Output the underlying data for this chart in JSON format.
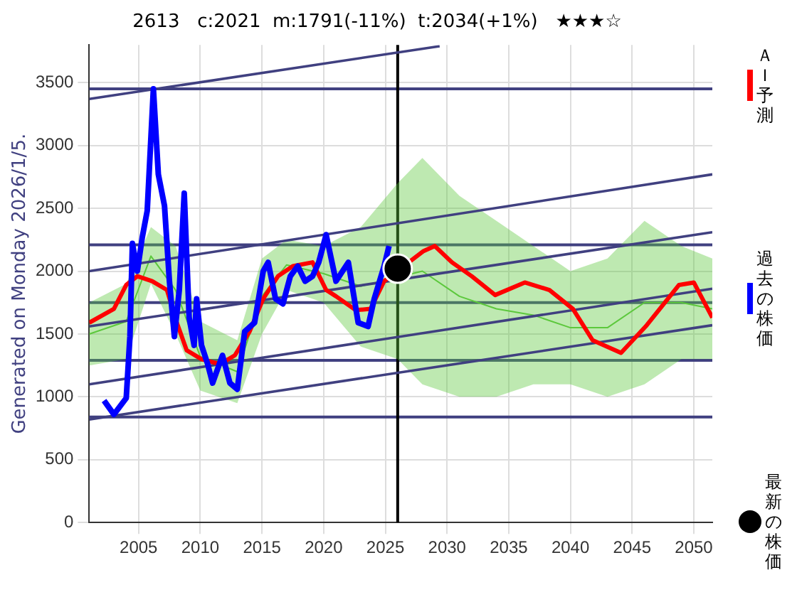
{
  "chart_data": {
    "type": "line",
    "title": "2613   c:2021  m:1791(-11%)  t:2034(+1%)   ★★★☆",
    "annotations": [
      "Generated on Monday 2026/1/5."
    ],
    "xlim": [
      2001,
      2051.5
    ],
    "xticks": [
      2005,
      2010,
      2015,
      2020,
      2025,
      2030,
      2035,
      2040,
      2045,
      2050
    ],
    "ylim": [
      0,
      3800
    ],
    "yticks": [
      0,
      500,
      1000,
      1500,
      2000,
      2500,
      3000,
      3500
    ],
    "grid": true,
    "legend": "right",
    "ref_lines": [
      {
        "axis": "y",
        "value": 3450,
        "color": "#404080"
      },
      {
        "axis": "y",
        "value": 2210,
        "color": "#404080"
      },
      {
        "axis": "y",
        "value": 1750,
        "color": "#404080"
      },
      {
        "axis": "y",
        "value": 1290,
        "color": "#404080"
      },
      {
        "axis": "y",
        "value": 840,
        "color": "#404080"
      },
      {
        "axis": "x",
        "value": 2026,
        "color": "#000000"
      }
    ],
    "series": [
      {
        "color": "#5cc83c",
        "x": [
          2001,
          2004,
          2006,
          2008,
          2010,
          2013,
          2015,
          2017,
          2020,
          2023,
          2026,
          2028,
          2031,
          2034,
          2037,
          2040,
          2043,
          2046,
          2049,
          2051.5
        ],
        "values": [
          1500,
          1600,
          2120,
          1850,
          1320,
          1200,
          1800,
          2050,
          1980,
          1880,
          null,
          2000,
          1800,
          1700,
          1650,
          1550,
          1550,
          1750,
          1750,
          1700
        ],
        "lower": [
          1250,
          1300,
          1900,
          1500,
          1050,
          950,
          1500,
          1850,
          1750,
          1400,
          1300,
          1100,
          1000,
          1000,
          1100,
          1100,
          1000,
          1100,
          1300,
          1300
        ],
        "upper": [
          1750,
          1900,
          2350,
          2200,
          1600,
          1450,
          2100,
          2250,
          2200,
          2350,
          2700,
          2900,
          2600,
          2400,
          2200,
          2000,
          2100,
          2400,
          2200,
          2100
        ]
      },
      {
        "color": "#404080",
        "x": [
          2001,
          2029.4
        ],
        "values": [
          3370,
          3790
        ]
      },
      {
        "color": "#404080",
        "x": [
          2001,
          2051.5
        ],
        "values": [
          2000,
          2770
        ]
      },
      {
        "color": "#404080",
        "x": [
          2001,
          2051.5
        ],
        "values": [
          1560,
          2310
        ]
      },
      {
        "color": "#404080",
        "x": [
          2001,
          2051.5
        ],
        "values": [
          1100,
          1860
        ]
      },
      {
        "color": "#404080",
        "x": [
          2001,
          2051.5
        ],
        "values": [
          820,
          1570
        ]
      },
      {
        "name": "ＡＩ予測",
        "color": "#ff0000",
        "x": [
          2001,
          2003,
          2004,
          2004.9,
          2006.1,
          2007.3,
          2008.1,
          2008.9,
          2010.1,
          2011.6,
          2012.8,
          2014,
          2015.1,
          2016.3,
          2017.5,
          2019.1,
          2020.2,
          2021,
          2022.6,
          2023.8,
          2024.9,
          2026.5,
          2028.1,
          2029,
          2030.4,
          2032,
          2033.9,
          2036.3,
          2038.3,
          2040.2,
          2041.8,
          2044.1,
          2046.1,
          2048.8,
          2050,
          2051.5
        ],
        "values": [
          1590,
          1700,
          1890,
          1960,
          1920,
          1850,
          1590,
          1370,
          1300,
          1260,
          1330,
          1520,
          1780,
          1960,
          2040,
          2070,
          1850,
          1800,
          1690,
          1700,
          1920,
          null,
          2160,
          2200,
          2070,
          1960,
          1810,
          1910,
          1850,
          1700,
          1450,
          1350,
          1560,
          1890,
          1910,
          1630
        ]
      },
      {
        "name": "過去の株価",
        "color": "#0000ff",
        "x": [
          2002.2,
          2003,
          2004,
          2004.3,
          2004.5,
          2004.9,
          2005.3,
          2005.7,
          2006.2,
          2006.6,
          2007.1,
          2007.5,
          2007.9,
          2008.3,
          2008.7,
          2009.1,
          2009.5,
          2009.7,
          2010.1,
          2010.6,
          2011,
          2011.8,
          2012.4,
          2013,
          2013.6,
          2014.4,
          2015.1,
          2015.5,
          2016.1,
          2016.7,
          2017.3,
          2017.9,
          2018.5,
          2019.1,
          2019.6,
          2020.2,
          2021,
          2022,
          2022.8,
          2023.6,
          2024.1,
          2024.9,
          2025.3
        ],
        "values": [
          970,
          860,
          990,
          1480,
          2220,
          2000,
          2270,
          2480,
          3450,
          2770,
          2520,
          1920,
          1480,
          1850,
          2620,
          1630,
          1410,
          1780,
          1410,
          1260,
          1110,
          1330,
          1110,
          1060,
          1520,
          1590,
          2000,
          2070,
          1780,
          1740,
          1960,
          2040,
          1920,
          1960,
          2070,
          2290,
          1920,
          2070,
          1590,
          1560,
          1780,
          2040,
          2200
        ]
      },
      {
        "type": "scatter",
        "name": "最新の株価",
        "color": "#000000",
        "marker": "circle",
        "x": [
          2026
        ],
        "values": [
          2020
        ]
      }
    ]
  }
}
